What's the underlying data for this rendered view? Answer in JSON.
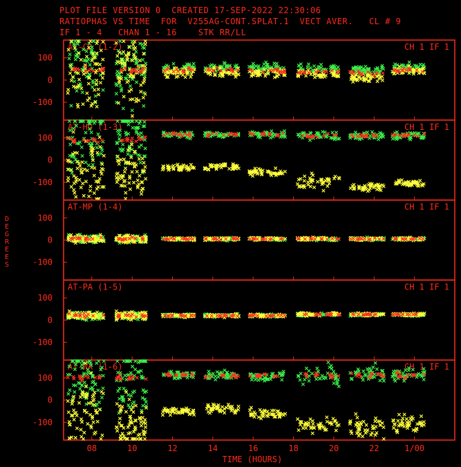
{
  "header": {
    "line1": "PLOT FILE VERSION 0  CREATED 17-SEP-2022 22:30:06",
    "line2": "RATIOPHAS VS TIME  FOR  V255AG-CONT.SPLAT.1  VECT AVER.   CL # 9",
    "line3": "IF 1 - 4   CHAN 1 - 16    STK RR/LL"
  },
  "colors": {
    "frame": "#ff2a1a",
    "rr": "#3cf04a",
    "ll": "#ffff3c",
    "avg": "#ff3020",
    "bg": "#000000"
  },
  "chart_data": {
    "type": "scatter",
    "title": "RATIOPHAS VS TIME  FOR  V255AG-CONT.SPLAT.1",
    "xlabel": "TIME (HOURS)",
    "ylabel": "DEGREES",
    "x_ticks": [
      "08",
      "10",
      "12",
      "14",
      "16",
      "18",
      "20",
      "22",
      "1/00"
    ],
    "x_tick_hours": [
      8,
      10,
      12,
      14,
      16,
      18,
      20,
      22,
      24
    ],
    "xlim": [
      6.6,
      26.0
    ],
    "y_ticks": [
      "100",
      "0",
      "-100"
    ],
    "y_tick_values": [
      100,
      0,
      -100
    ],
    "ylim": [
      -180,
      180
    ],
    "grid": false,
    "scans": [
      [
        6.8,
        8.6
      ],
      [
        9.2,
        10.7
      ],
      [
        11.5,
        13.1
      ],
      [
        13.6,
        15.3
      ],
      [
        15.8,
        17.6
      ],
      [
        18.2,
        20.3
      ],
      [
        20.8,
        22.5
      ],
      [
        22.9,
        24.5
      ]
    ],
    "panels": [
      {
        "label": "AT-CD (1-2)",
        "tag": "CH 1  IF 1",
        "rr": [
          60,
          60,
          55,
          55,
          55,
          50,
          45,
          55
        ],
        "ll": [
          40,
          40,
          35,
          35,
          30,
          25,
          10,
          40
        ],
        "avg": [
          45,
          45,
          45,
          45,
          40,
          38,
          30,
          45
        ],
        "scatter_rr": [
          120,
          120,
          15,
          15,
          15,
          15,
          15,
          15
        ],
        "scatter_ll": [
          120,
          120,
          15,
          15,
          15,
          15,
          15,
          15
        ]
      },
      {
        "label": "AT-HO (1-3)",
        "tag": "CH 1  IF 1",
        "rr": [
          110,
          110,
          115,
          115,
          115,
          110,
          110,
          110
        ],
        "ll": [
          -40,
          -60,
          -35,
          -30,
          -55,
          -95,
          -120,
          -105
        ],
        "avg": [
          90,
          95,
          115,
          115,
          115,
          110,
          110,
          110
        ],
        "scatter_rr": [
          120,
          120,
          12,
          10,
          10,
          15,
          12,
          12
        ],
        "scatter_ll": [
          120,
          90,
          10,
          12,
          12,
          25,
          15,
          12
        ]
      },
      {
        "label": "AT-MP (1-4)",
        "tag": "CH 1  IF 1",
        "rr": [
          5,
          5,
          5,
          5,
          5,
          5,
          5,
          5
        ],
        "ll": [
          5,
          5,
          5,
          5,
          5,
          5,
          5,
          5
        ],
        "avg": [
          5,
          5,
          5,
          5,
          5,
          5,
          5,
          5
        ],
        "scatter_rr": [
          12,
          12,
          5,
          5,
          5,
          5,
          5,
          5
        ],
        "scatter_ll": [
          12,
          12,
          5,
          5,
          5,
          5,
          5,
          5
        ]
      },
      {
        "label": "AT-PA (1-5)",
        "tag": "CH 1  IF 1",
        "rr": [
          20,
          20,
          20,
          20,
          20,
          25,
          25,
          25
        ],
        "ll": [
          20,
          20,
          20,
          20,
          20,
          25,
          25,
          25
        ],
        "avg": [
          20,
          20,
          20,
          20,
          20,
          25,
          25,
          25
        ],
        "scatter_rr": [
          12,
          12,
          5,
          5,
          5,
          5,
          5,
          5
        ],
        "scatter_ll": [
          12,
          12,
          5,
          5,
          5,
          5,
          5,
          5
        ]
      },
      {
        "label": "AT-WA (1-6)",
        "tag": "CH 1  IF 1",
        "rr": [
          110,
          110,
          115,
          110,
          110,
          110,
          115,
          115
        ],
        "ll": [
          -60,
          -100,
          -50,
          -40,
          -60,
          -110,
          -130,
          -110
        ],
        "avg": [
          100,
          100,
          115,
          110,
          110,
          110,
          110,
          110
        ],
        "scatter_rr": [
          120,
          120,
          12,
          15,
          15,
          40,
          30,
          20
        ],
        "scatter_ll": [
          120,
          100,
          12,
          15,
          15,
          25,
          40,
          30
        ]
      }
    ]
  }
}
